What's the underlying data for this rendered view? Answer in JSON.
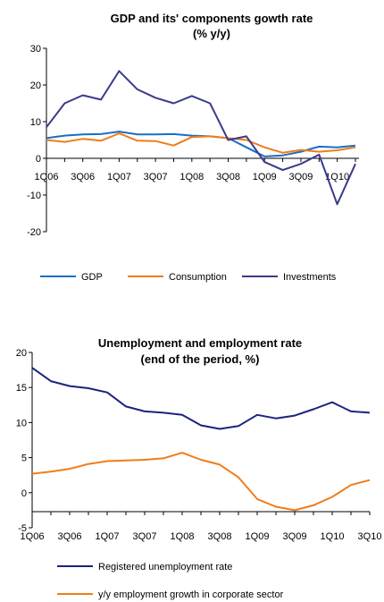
{
  "chart_data": [
    {
      "type": "line",
      "title": "GDP and its' components gowth rate",
      "subtitle": "(% y/y)",
      "x_tick_labels": [
        "1Q06",
        "3Q06",
        "1Q07",
        "3Q07",
        "1Q08",
        "3Q08",
        "1Q09",
        "3Q09",
        "1Q10"
      ],
      "y_tick_labels": [
        "30",
        "20",
        "10",
        "0",
        "-10",
        "-20"
      ],
      "ylim": [
        -20,
        30
      ],
      "legend_position": "bottom",
      "series": [
        {
          "name": "GDP",
          "color": "#1a6fc4",
          "values": [
            5.5,
            6.2,
            6.5,
            6.6,
            7.3,
            6.5,
            6.5,
            6.6,
            6.2,
            6.0,
            5.5,
            3.0,
            0.5,
            0.8,
            1.8,
            3.2,
            3.0,
            3.5
          ]
        },
        {
          "name": "Consumption",
          "color": "#f07d1a",
          "values": [
            5.0,
            4.5,
            5.3,
            4.8,
            6.8,
            4.8,
            4.7,
            3.5,
            5.8,
            6.0,
            5.5,
            5.0,
            3.0,
            1.5,
            2.3,
            1.8,
            2.2,
            3.0
          ]
        },
        {
          "name": "Investments",
          "color": "#3a3a8c",
          "values": [
            8.5,
            15.0,
            17.2,
            16.0,
            23.8,
            18.8,
            16.5,
            15.0,
            17.0,
            15.0,
            5.0,
            6.0,
            -1.0,
            -3.2,
            -1.5,
            1.0,
            -12.5,
            -1.5
          ]
        }
      ]
    },
    {
      "type": "line",
      "title": "Unemployment and employment rate",
      "subtitle": "(end of the period, %)",
      "x_tick_labels": [
        "1Q06",
        "3Q06",
        "1Q07",
        "3Q07",
        "1Q08",
        "3Q08",
        "1Q09",
        "3Q09",
        "1Q10",
        "3Q10"
      ],
      "y_tick_labels": [
        "20",
        "15",
        "10",
        "5",
        "0",
        "-5"
      ],
      "ylim": [
        -5,
        20
      ],
      "legend_position": "bottom",
      "series": [
        {
          "name": "Registered unemployment rate",
          "color": "#1a237e",
          "values": [
            17.8,
            15.9,
            15.2,
            14.9,
            14.3,
            12.3,
            11.6,
            11.4,
            11.1,
            9.6,
            9.1,
            9.5,
            11.1,
            10.6,
            11.0,
            11.9,
            12.9,
            11.6,
            11.4
          ]
        },
        {
          "name": "y/y employment growth in corporate sector",
          "color": "#f07d1a",
          "values": [
            2.7,
            3.0,
            3.4,
            4.1,
            4.5,
            4.6,
            4.7,
            4.9,
            5.7,
            4.7,
            4.0,
            2.2,
            -0.9,
            -2.0,
            -2.5,
            -1.8,
            -0.6,
            1.1,
            1.8
          ]
        }
      ]
    }
  ]
}
